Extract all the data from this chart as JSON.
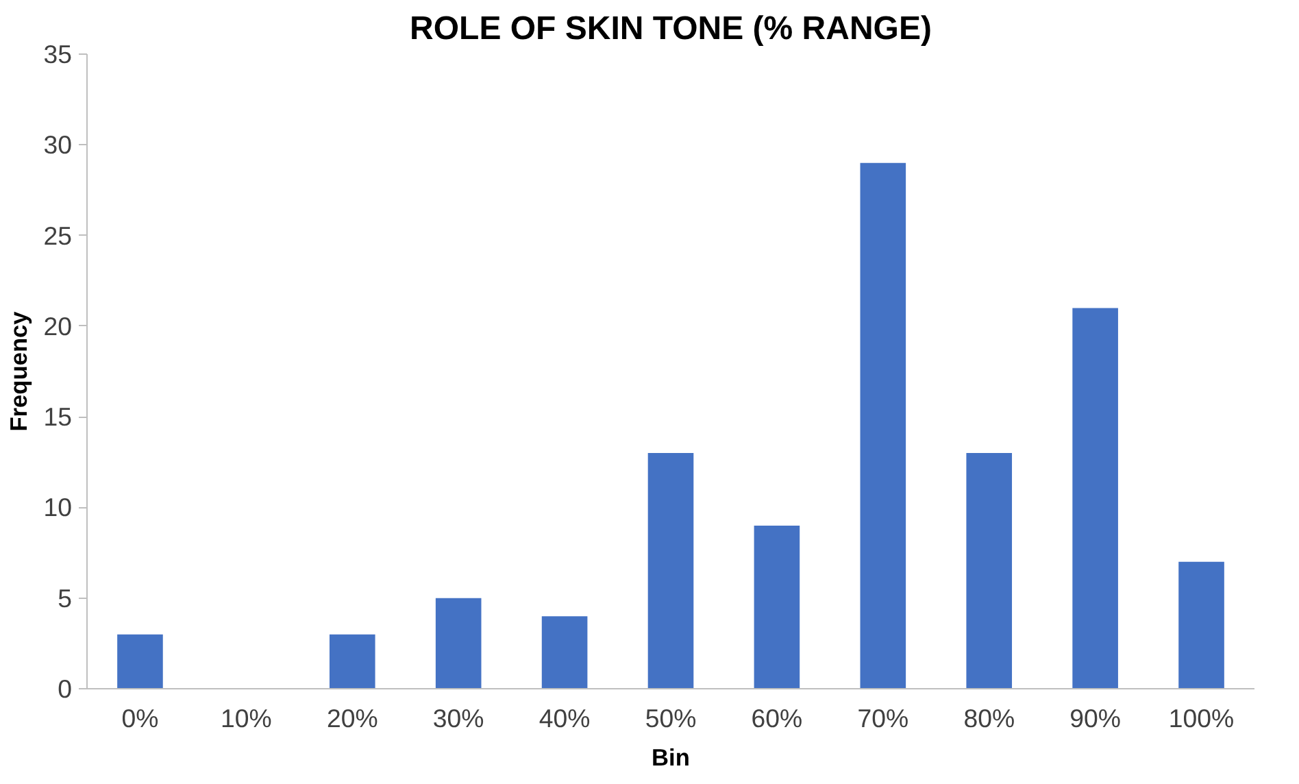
{
  "chart_data": {
    "type": "bar",
    "title": "ROLE OF SKIN TONE (% RANGE)",
    "xlabel": "Bin",
    "ylabel": "Frequency",
    "categories": [
      "0%",
      "10%",
      "20%",
      "30%",
      "40%",
      "50%",
      "60%",
      "70%",
      "80%",
      "90%",
      "100%"
    ],
    "values": [
      3,
      0,
      3,
      5,
      4,
      13,
      9,
      29,
      13,
      21,
      7
    ],
    "color": "#4472c4",
    "ylim": [
      0,
      35
    ],
    "yticks": [
      0,
      5,
      10,
      15,
      20,
      25,
      30,
      35
    ],
    "grid": false
  }
}
